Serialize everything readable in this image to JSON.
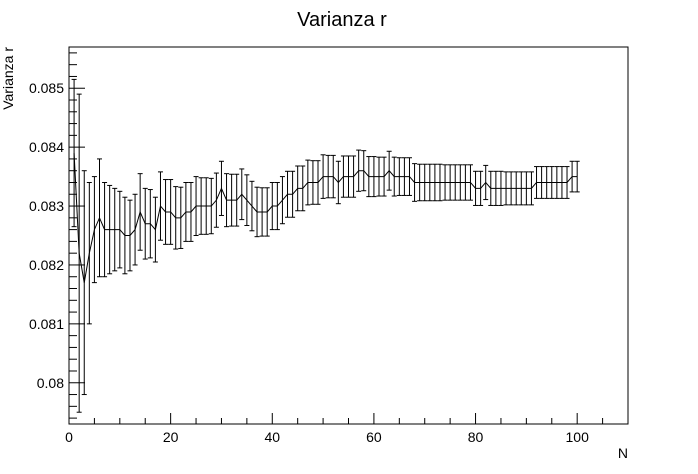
{
  "chart_data": {
    "type": "line",
    "title": "Varianza r",
    "xlabel": "N",
    "ylabel": "Varianza r",
    "xlim": [
      0,
      110
    ],
    "ylim": [
      0.0793,
      0.0857
    ],
    "x_ticks": [
      0,
      20,
      40,
      60,
      80,
      100
    ],
    "x_tick_labels": [
      "0",
      "20",
      "40",
      "60",
      "80",
      "100"
    ],
    "y_ticks": [
      0.08,
      0.081,
      0.082,
      0.083,
      0.084,
      0.085
    ],
    "y_tick_labels": [
      "0.08",
      "0.081",
      "0.082",
      "0.083",
      "0.084",
      "0.085"
    ],
    "grid": false,
    "legend": "none",
    "line_color": "#000000",
    "series": [
      {
        "x": [
          1,
          2,
          3,
          4,
          5,
          6,
          7,
          8,
          9,
          10,
          11,
          12,
          13,
          14,
          15,
          16,
          17,
          18,
          19,
          20,
          21,
          22,
          23,
          24,
          25,
          26,
          27,
          28,
          29,
          30,
          31,
          32,
          33,
          34,
          35,
          36,
          37,
          38,
          39,
          40,
          41,
          42,
          43,
          44,
          45,
          46,
          47,
          48,
          49,
          50,
          51,
          52,
          53,
          54,
          55,
          56,
          57,
          58,
          59,
          60,
          61,
          62,
          63,
          64,
          65,
          66,
          67,
          68,
          69,
          70,
          71,
          72,
          73,
          74,
          75,
          76,
          77,
          78,
          79,
          80,
          81,
          82,
          83,
          84,
          85,
          86,
          87,
          88,
          89,
          90,
          91,
          92,
          93,
          94,
          95,
          96,
          97,
          98,
          99,
          100
        ],
        "y": [
          0.0839,
          0.0822,
          0.0817,
          0.0822,
          0.0826,
          0.0828,
          0.0826,
          0.0826,
          0.0826,
          0.0826,
          0.0825,
          0.0825,
          0.0826,
          0.0829,
          0.0827,
          0.0827,
          0.0826,
          0.083,
          0.0829,
          0.0829,
          0.0828,
          0.0828,
          0.0829,
          0.0829,
          0.083,
          0.083,
          0.083,
          0.083,
          0.0831,
          0.0833,
          0.0831,
          0.0831,
          0.0831,
          0.0832,
          0.0831,
          0.083,
          0.0829,
          0.0829,
          0.0829,
          0.083,
          0.083,
          0.0831,
          0.0832,
          0.0832,
          0.0833,
          0.0833,
          0.0834,
          0.0834,
          0.0834,
          0.0835,
          0.0835,
          0.0835,
          0.0834,
          0.0835,
          0.0835,
          0.0835,
          0.0836,
          0.0836,
          0.0835,
          0.0835,
          0.0835,
          0.0835,
          0.0836,
          0.0835,
          0.0835,
          0.0835,
          0.0835,
          0.0834,
          0.0834,
          0.0834,
          0.0834,
          0.0834,
          0.0834,
          0.0834,
          0.0834,
          0.0834,
          0.0834,
          0.0834,
          0.0834,
          0.0833,
          0.0833,
          0.0834,
          0.0833,
          0.0833,
          0.0833,
          0.0833,
          0.0833,
          0.0833,
          0.0833,
          0.0833,
          0.0833,
          0.0834,
          0.0834,
          0.0834,
          0.0834,
          0.0834,
          0.0834,
          0.0834,
          0.0835,
          0.0835
        ],
        "err": [
          0.00125,
          0.0027,
          0.0019,
          0.0012,
          0.0009,
          0.001,
          0.0008,
          0.00075,
          0.0007,
          0.00065,
          0.00065,
          0.0006,
          0.0006,
          0.00065,
          0.0006,
          0.00058,
          0.00055,
          0.00058,
          0.00055,
          0.00055,
          0.00053,
          0.00052,
          0.0005,
          0.0005,
          0.0005,
          0.00048,
          0.00048,
          0.00047,
          0.00046,
          0.00046,
          0.00045,
          0.00044,
          0.00044,
          0.00043,
          0.00043,
          0.00042,
          0.00042,
          0.00041,
          0.00041,
          0.0004,
          0.0004,
          0.0004,
          0.00039,
          0.00039,
          0.00038,
          0.00038,
          0.00038,
          0.00037,
          0.00037,
          0.00037,
          0.00036,
          0.00036,
          0.00036,
          0.00035,
          0.00035,
          0.00035,
          0.00035,
          0.00034,
          0.00034,
          0.00034,
          0.00033,
          0.00033,
          0.00033,
          0.00033,
          0.00032,
          0.00032,
          0.00032,
          0.00032,
          0.00031,
          0.00031,
          0.00031,
          0.00031,
          0.00031,
          0.0003,
          0.0003,
          0.0003,
          0.0003,
          0.0003,
          0.0003,
          0.00029,
          0.00029,
          0.00029,
          0.00029,
          0.00029,
          0.00029,
          0.00028,
          0.00028,
          0.00028,
          0.00028,
          0.00028,
          0.00028,
          0.00027,
          0.00027,
          0.00027,
          0.00027,
          0.00027,
          0.00027,
          0.00027,
          0.00026,
          0.00026
        ]
      }
    ]
  }
}
